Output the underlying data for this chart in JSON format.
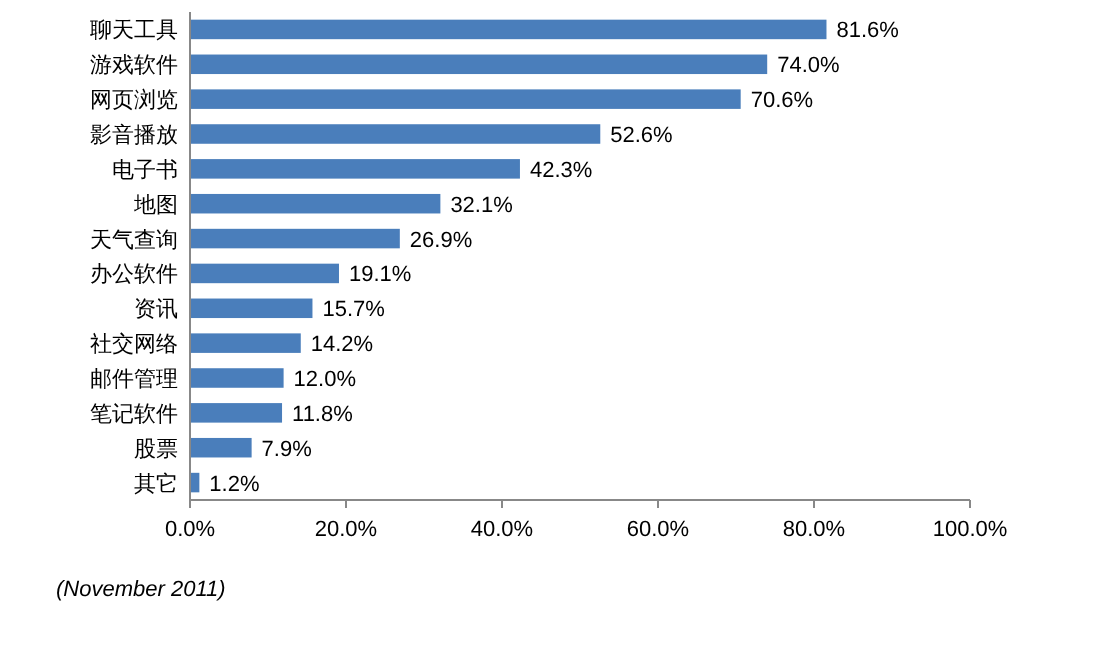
{
  "chart_data": {
    "type": "bar",
    "orientation": "horizontal",
    "categories": [
      "聊天工具",
      "游戏软件",
      "网页浏览",
      "影音播放",
      "电子书",
      "地图",
      "天气查询",
      "办公软件",
      "资讯",
      "社交网络",
      "邮件管理",
      "笔记软件",
      "股票",
      "其它"
    ],
    "values": [
      81.6,
      74.0,
      70.6,
      52.6,
      42.3,
      32.1,
      26.9,
      19.1,
      15.7,
      14.2,
      12.0,
      11.8,
      7.9,
      1.2
    ],
    "value_labels": [
      "81.6%",
      "74.0%",
      "70.6%",
      "52.6%",
      "42.3%",
      "32.1%",
      "26.9%",
      "19.1%",
      "15.7%",
      "14.2%",
      "12.0%",
      "11.8%",
      "7.9%",
      "1.2%"
    ],
    "color": "#4a7ebb",
    "xlim": [
      0,
      100
    ],
    "xticks": [
      {
        "value": 0,
        "label": "0.0%"
      },
      {
        "value": 20,
        "label": "20.0%"
      },
      {
        "value": 40,
        "label": "40.0%"
      },
      {
        "value": 60,
        "label": "60.0%"
      },
      {
        "value": 80,
        "label": "80.0%"
      },
      {
        "value": 100,
        "label": "100.0%"
      }
    ],
    "annotations": [
      "(November 2011)"
    ]
  }
}
